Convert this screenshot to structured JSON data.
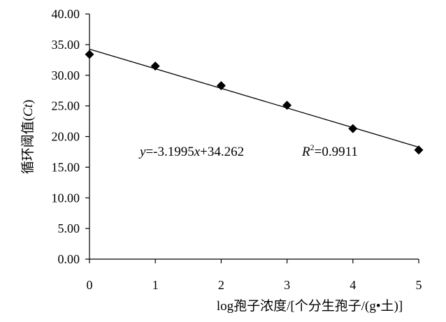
{
  "chart_data": {
    "type": "scatter",
    "title": "",
    "xlabel": "log孢子浓度/[个分生孢子/(g•土)]",
    "ylabel": "循环阈值(Ct)",
    "ylabel_parts": {
      "main": "循环阈值(",
      "italic": "Ct",
      "close": ")"
    },
    "xlim": [
      0,
      5
    ],
    "ylim": [
      0,
      40
    ],
    "x_ticks": [
      "0",
      "1",
      "2",
      "3",
      "4",
      "5"
    ],
    "y_ticks": [
      "0.00",
      "5.00",
      "10.00",
      "15.00",
      "20.00",
      "25.00",
      "30.00",
      "35.00",
      "40.00"
    ],
    "grid": false,
    "legend": "none",
    "marker": "diamond",
    "marker_color": "#000000",
    "series": [
      {
        "x": [
          0,
          1,
          2,
          3,
          4,
          5
        ],
        "y": [
          33.4,
          31.5,
          28.3,
          25.1,
          21.3,
          17.8
        ]
      }
    ],
    "trendline": {
      "slope": -3.1995,
      "intercept": 34.262
    },
    "annotations": {
      "equation": {
        "y": "y",
        "rest": "=-3.1995",
        "x": "x",
        "tail": "+34.262"
      },
      "r2": {
        "R": "R",
        "sup": "2",
        "rest": "=0.9911"
      }
    }
  }
}
